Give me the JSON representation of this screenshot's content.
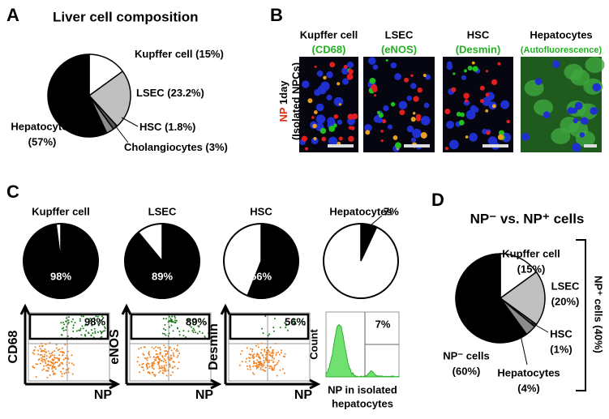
{
  "panel_a": {
    "letter": "A",
    "title": "Liver cell composition",
    "pie": {
      "type": "pie",
      "categories": [
        "Kupffer cell",
        "LSEC",
        "HSC",
        "Cholangiocytes",
        "Hepatocytes"
      ],
      "values": [
        15,
        23.2,
        1.8,
        3,
        57
      ],
      "value_labels": [
        "(15%)",
        "(23.2%)",
        "(1.8%)",
        "(3%)",
        "(57%)"
      ],
      "colors": [
        "#ffffff",
        "#c0c0c0",
        "#555555",
        "#8c8c8c",
        "#000000"
      ]
    }
  },
  "panel_b": {
    "letter": "B",
    "side_label": {
      "marker": "NP",
      "time": "1day",
      "source": "(Isolated NPCs)"
    },
    "columns": [
      {
        "title": "Kupffer cell",
        "stain": "(CD68)"
      },
      {
        "title": "LSEC",
        "stain": "(eNOS)"
      },
      {
        "title": "HSC",
        "stain": "(Desmin)"
      },
      {
        "title": "Hepatocytes",
        "stain": "(Autofluorescence)"
      }
    ]
  },
  "panel_c": {
    "letter": "C",
    "x_axis_label": "NP",
    "plots": [
      {
        "title": "Kupffer cell",
        "value": 98,
        "value_label": "98%",
        "y_axis_label": "CD68"
      },
      {
        "title": "LSEC",
        "value": 89,
        "value_label": "89%",
        "y_axis_label": "eNOS"
      },
      {
        "title": "HSC",
        "value": 56,
        "value_label": "56%",
        "y_axis_label": "Desmin"
      },
      {
        "title": "Hepatocytes",
        "value": 7,
        "value_label": "7%",
        "y_axis_label": "Count",
        "x_axis_label": [
          "NP in isolated",
          "hepatocytes"
        ]
      }
    ]
  },
  "panel_d": {
    "letter": "D",
    "title": "NP⁻ vs. NP⁺ cells",
    "bracket_label": "NP⁺ cells (40%)",
    "pie": {
      "type": "pie",
      "categories": [
        "Kupffer cell",
        "LSEC",
        "HSC",
        "Hepatocytes",
        "NP⁻ cells"
      ],
      "values": [
        15,
        20,
        1,
        4,
        60
      ],
      "value_labels": [
        "(15%)",
        "(20%)",
        "(1%)",
        "(4%)",
        "(60%)"
      ],
      "colors": [
        "#ffffff",
        "#c0c0c0",
        "#555555",
        "#8c8c8c",
        "#000000"
      ]
    }
  }
}
